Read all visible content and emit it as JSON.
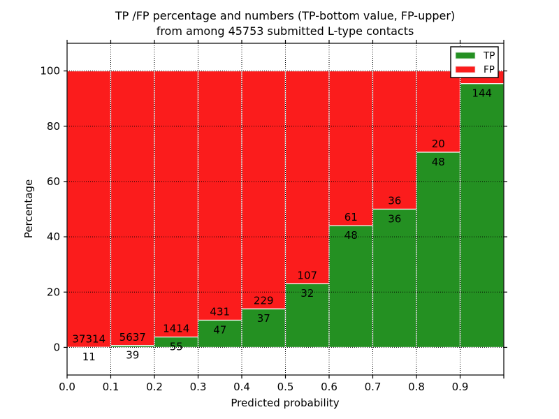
{
  "chart_data": {
    "type": "bar",
    "subtype": "stacked_percentage_histogram",
    "title_line1": "TP /FP percentage and numbers (TP-bottom value, FP-upper)",
    "title_line2": "from among 45753 submitted L-type contacts",
    "xlabel": "Predicted probability",
    "ylabel": "Percentage",
    "x_tick_labels": [
      "0.0",
      "0.1",
      "0.2",
      "0.3",
      "0.4",
      "0.5",
      "0.6",
      "0.7",
      "0.8",
      "0.9"
    ],
    "y_ticks": [
      0,
      20,
      40,
      60,
      80,
      100
    ],
    "xlim": [
      0.0,
      1.0
    ],
    "ylim": [
      -10,
      110
    ],
    "grid": "dotted black, drawn above bars",
    "bar_edge_color": "#ffffff",
    "colors": {
      "tp": "#249022",
      "fp": "#fb1c1c"
    },
    "legend": [
      {
        "label": "TP",
        "color": "#249022"
      },
      {
        "label": "FP",
        "color": "#fb1c1c"
      }
    ],
    "legend_position": "upper right",
    "bins": [
      {
        "x_range": [
          0.0,
          0.1
        ],
        "tp": 11,
        "fp": 37314,
        "tp_label": "11",
        "fp_label": "37314"
      },
      {
        "x_range": [
          0.1,
          0.2
        ],
        "tp": 39,
        "fp": 5637,
        "tp_label": "39",
        "fp_label": "5637"
      },
      {
        "x_range": [
          0.2,
          0.3
        ],
        "tp": 55,
        "fp": 1414,
        "tp_label": "55",
        "fp_label": "1414"
      },
      {
        "x_range": [
          0.3,
          0.4
        ],
        "tp": 47,
        "fp": 431,
        "tp_label": "47",
        "fp_label": "431"
      },
      {
        "x_range": [
          0.4,
          0.5
        ],
        "tp": 37,
        "fp": 229,
        "tp_label": "37",
        "fp_label": "229"
      },
      {
        "x_range": [
          0.5,
          0.6
        ],
        "tp": 32,
        "fp": 107,
        "tp_label": "32",
        "fp_label": "107"
      },
      {
        "x_range": [
          0.6,
          0.7
        ],
        "tp": 48,
        "fp": 61,
        "tp_label": "48",
        "fp_label": "61"
      },
      {
        "x_range": [
          0.7,
          0.8
        ],
        "tp": 36,
        "fp": 36,
        "tp_label": "36",
        "fp_label": "36"
      },
      {
        "x_range": [
          0.8,
          0.9
        ],
        "tp": 48,
        "fp": 20,
        "tp_label": "48",
        "fp_label": "20"
      },
      {
        "x_range": [
          0.9,
          1.0
        ],
        "tp": 144,
        "fp": null,
        "tp_label": "144",
        "fp_label": "",
        "tp_pct_est": 95.4,
        "note": "FP count label hidden behind legend box"
      }
    ]
  }
}
